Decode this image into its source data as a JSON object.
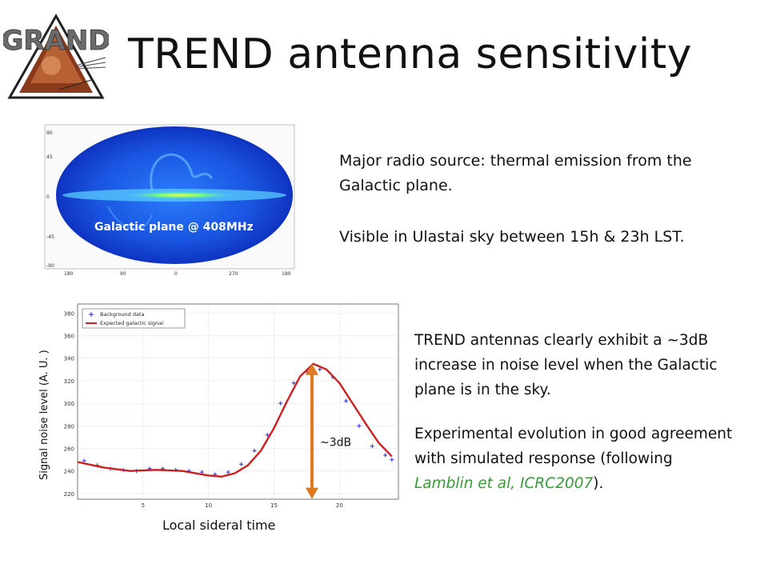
{
  "logo": {
    "text": "GRAND"
  },
  "title": "TREND antenna sensitivity",
  "sky_map": {
    "label": "Galactic plane @ 408MHz"
  },
  "text": {
    "p1": "Major radio source: thermal emission from the Galactic plane.",
    "p2": "Visible in Ulastai sky between 15h & 23h LST.",
    "p3": "TREND antennas clearly exhibit a ~3dB increase in noise level when the Galactic plane is in the sky.",
    "p4_before": "Experimental evolution in good agreement with simulated response (following ",
    "p4_link": "Lamblin et al, ICRC2007",
    "p4_after": ")."
  },
  "chart_data": {
    "type": "scatter",
    "xlabel": "Local sideral time",
    "ylabel": "Signal noise level (A. U. )",
    "xlim": [
      0,
      24.5
    ],
    "ylim": [
      215,
      388
    ],
    "xticks": [
      5,
      10,
      15,
      20
    ],
    "yticks": [
      220,
      240,
      260,
      280,
      300,
      320,
      340,
      360,
      380
    ],
    "legend": {
      "position": "top-left",
      "entries": [
        "Background data",
        "Expected galactic signal"
      ]
    },
    "grid": true,
    "series": [
      {
        "name": "Background data",
        "kind": "scatter",
        "x": [
          0.5,
          1.5,
          2.5,
          3.5,
          4.5,
          5.5,
          6.5,
          7.5,
          8.5,
          9.5,
          10.5,
          11.5,
          12.5,
          13.5,
          14.5,
          15.5,
          16.5,
          17.5,
          18.5,
          19.5,
          20.5,
          21.5,
          22.5,
          23.5,
          24.0
        ],
        "y": [
          249,
          245,
          242,
          241,
          240,
          242,
          242,
          241,
          240,
          239,
          237,
          239,
          246,
          258,
          272,
          300,
          318,
          328,
          330,
          323,
          302,
          280,
          262,
          254,
          250
        ]
      },
      {
        "name": "Expected galactic signal",
        "kind": "line",
        "x": [
          0,
          2,
          4,
          6,
          8,
          10,
          11,
          12,
          13,
          14,
          15,
          16,
          17,
          18,
          19,
          20,
          21,
          22,
          23,
          24
        ],
        "y": [
          248,
          243,
          240,
          241,
          240,
          236,
          235,
          238,
          245,
          258,
          278,
          302,
          324,
          335,
          330,
          318,
          300,
          282,
          265,
          253
        ]
      }
    ],
    "annotation": {
      "text": "~3dB",
      "arrow_from": 228,
      "arrow_to": 335,
      "x": 17.9
    }
  }
}
